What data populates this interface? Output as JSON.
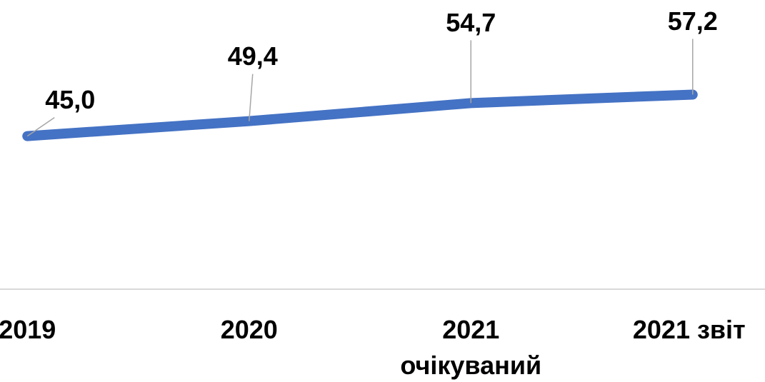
{
  "chart_data": {
    "type": "line",
    "categories": [
      "2019",
      "2020",
      "2021 очікуваний",
      "2021 звіт"
    ],
    "series": [
      {
        "color": "#4472c4",
        "values": [
          45.0,
          49.4,
          54.7,
          57.2
        ],
        "value_labels": [
          "45,0",
          "49,4",
          "54,7",
          "57,2"
        ]
      }
    ],
    "ylim": [
      0,
      85
    ]
  }
}
